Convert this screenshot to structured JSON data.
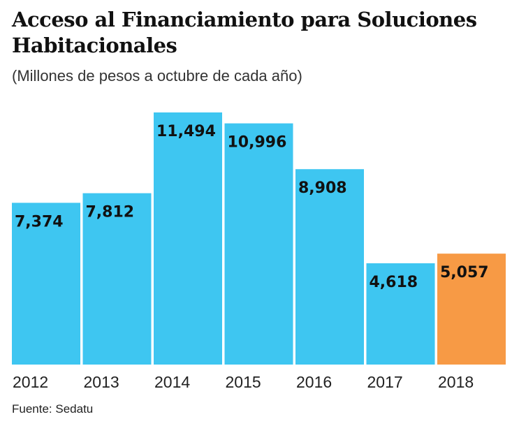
{
  "chart_data": {
    "type": "bar",
    "title": "Acceso al Financiamiento para Soluciones Habitacionales",
    "subtitle": "(Millones de pesos a octubre de cada año)",
    "categories": [
      "2012",
      "2013",
      "2014",
      "2015",
      "2016",
      "2017",
      "2018"
    ],
    "values": [
      7374,
      7812,
      11494,
      10996,
      8908,
      4618,
      5057
    ],
    "value_labels": [
      "7,374",
      "7,812",
      "11,494",
      "10,996",
      "8,908",
      "4,618",
      "5,057"
    ],
    "highlight_index": 6,
    "colors": {
      "bar": "#3ec6f1",
      "highlight": "#f79a45"
    },
    "ylim": [
      0,
      11494
    ],
    "grid": false,
    "source": "Fuente: Sedatu"
  }
}
